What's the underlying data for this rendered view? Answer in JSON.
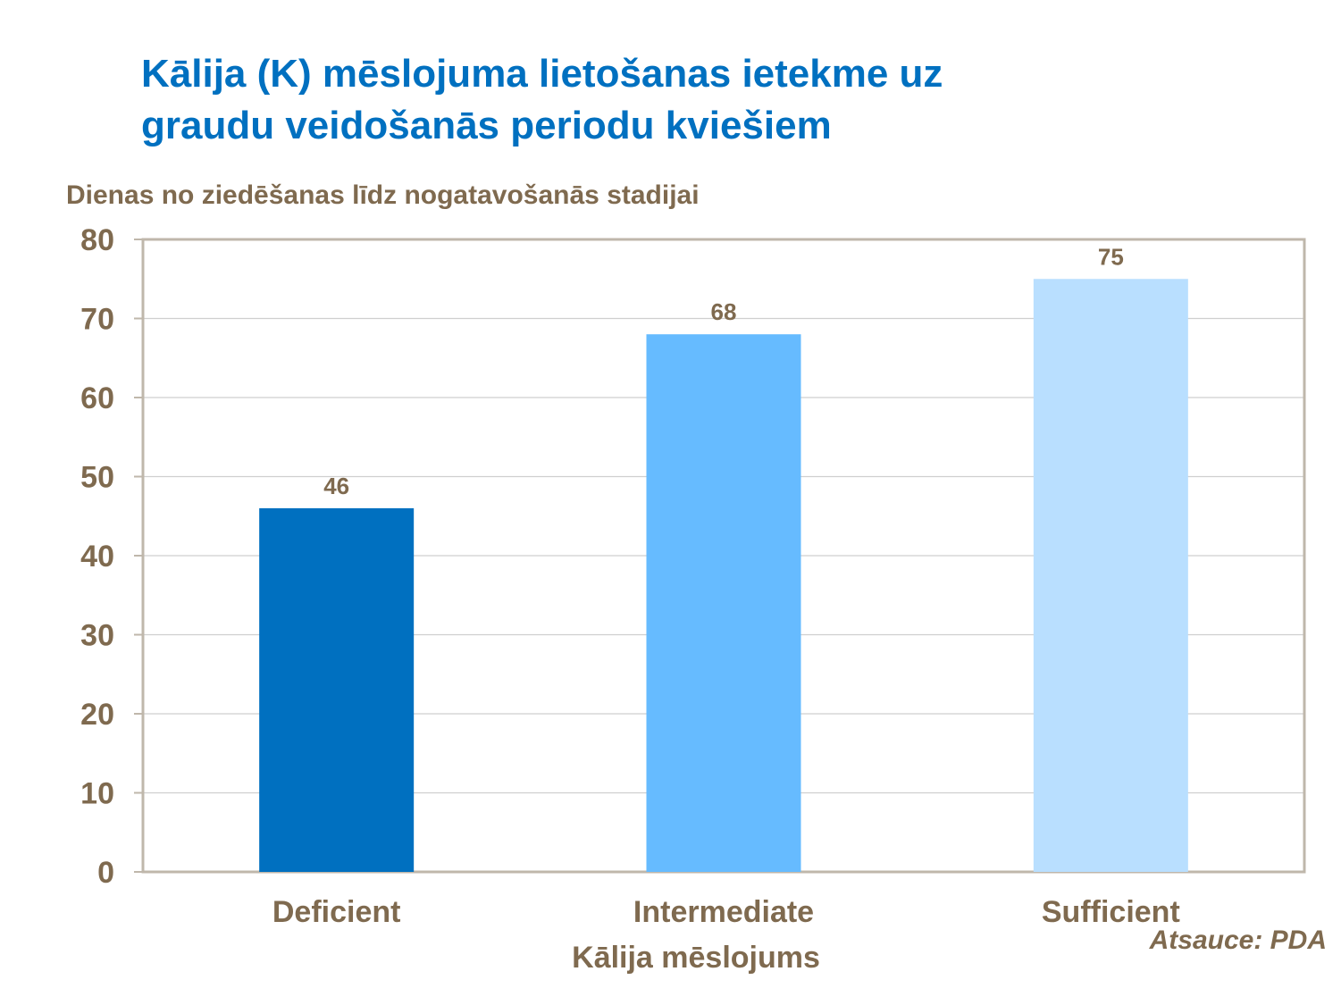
{
  "title_lines": [
    "Kālija (K) mēslojuma lietošanas ietekme uz",
    "graudu veidošanās periodu kviešiem"
  ],
  "source": "Atsauce: PDA",
  "colors": {
    "title": "#0070c0",
    "text": "#7f6a4f",
    "axis": "#bfb7ab",
    "grid": "#cfcfcf"
  },
  "chart_data": {
    "type": "bar",
    "title": "",
    "ylabel": "Dienas no ziedēšanas līdz nogatavošanās stadijai",
    "xlabel": "Kālija mēslojums",
    "categories": [
      "Deficient",
      "Intermediate",
      "Sufficient"
    ],
    "values": [
      46,
      68,
      75
    ],
    "bar_colors": [
      "#0070c0",
      "#66bbff",
      "#b9dfff"
    ],
    "ylim": [
      0,
      80
    ],
    "yticks": [
      0,
      10,
      20,
      30,
      40,
      50,
      60,
      70,
      80
    ],
    "grid": true,
    "legend": "none",
    "data_labels": true
  }
}
